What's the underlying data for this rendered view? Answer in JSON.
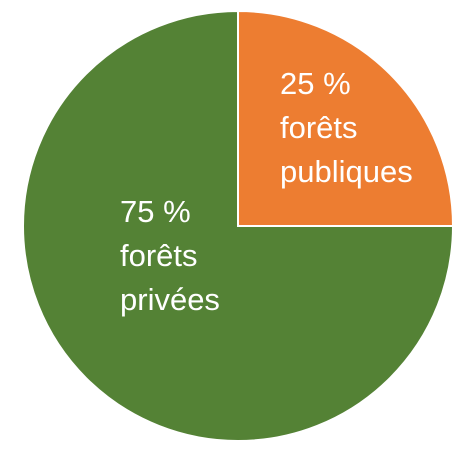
{
  "chart_data": {
    "type": "pie",
    "categories": [
      "forêts publiques",
      "forêts privées"
    ],
    "values": [
      25,
      75
    ],
    "value_labels": [
      "25 %",
      "75 %"
    ],
    "colors": [
      "#ed7d31",
      "#548235"
    ]
  }
}
